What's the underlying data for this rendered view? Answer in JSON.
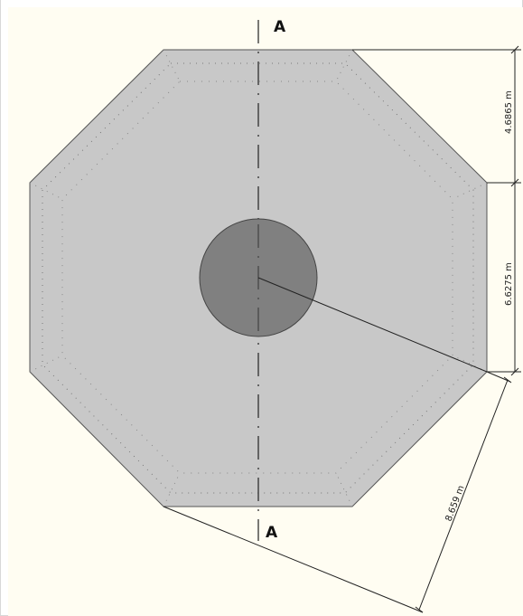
{
  "drawing": {
    "section_label_top": "A",
    "section_label_bottom": "A",
    "dimensions": {
      "top_segment": "4.6865 m",
      "lower_segment": "6.6275 m",
      "radius": "8.659 m"
    },
    "colors": {
      "background": "#fffdf2",
      "slab_fill": "#c8c8c8",
      "column_fill": "#808080",
      "line": "#333333"
    }
  }
}
